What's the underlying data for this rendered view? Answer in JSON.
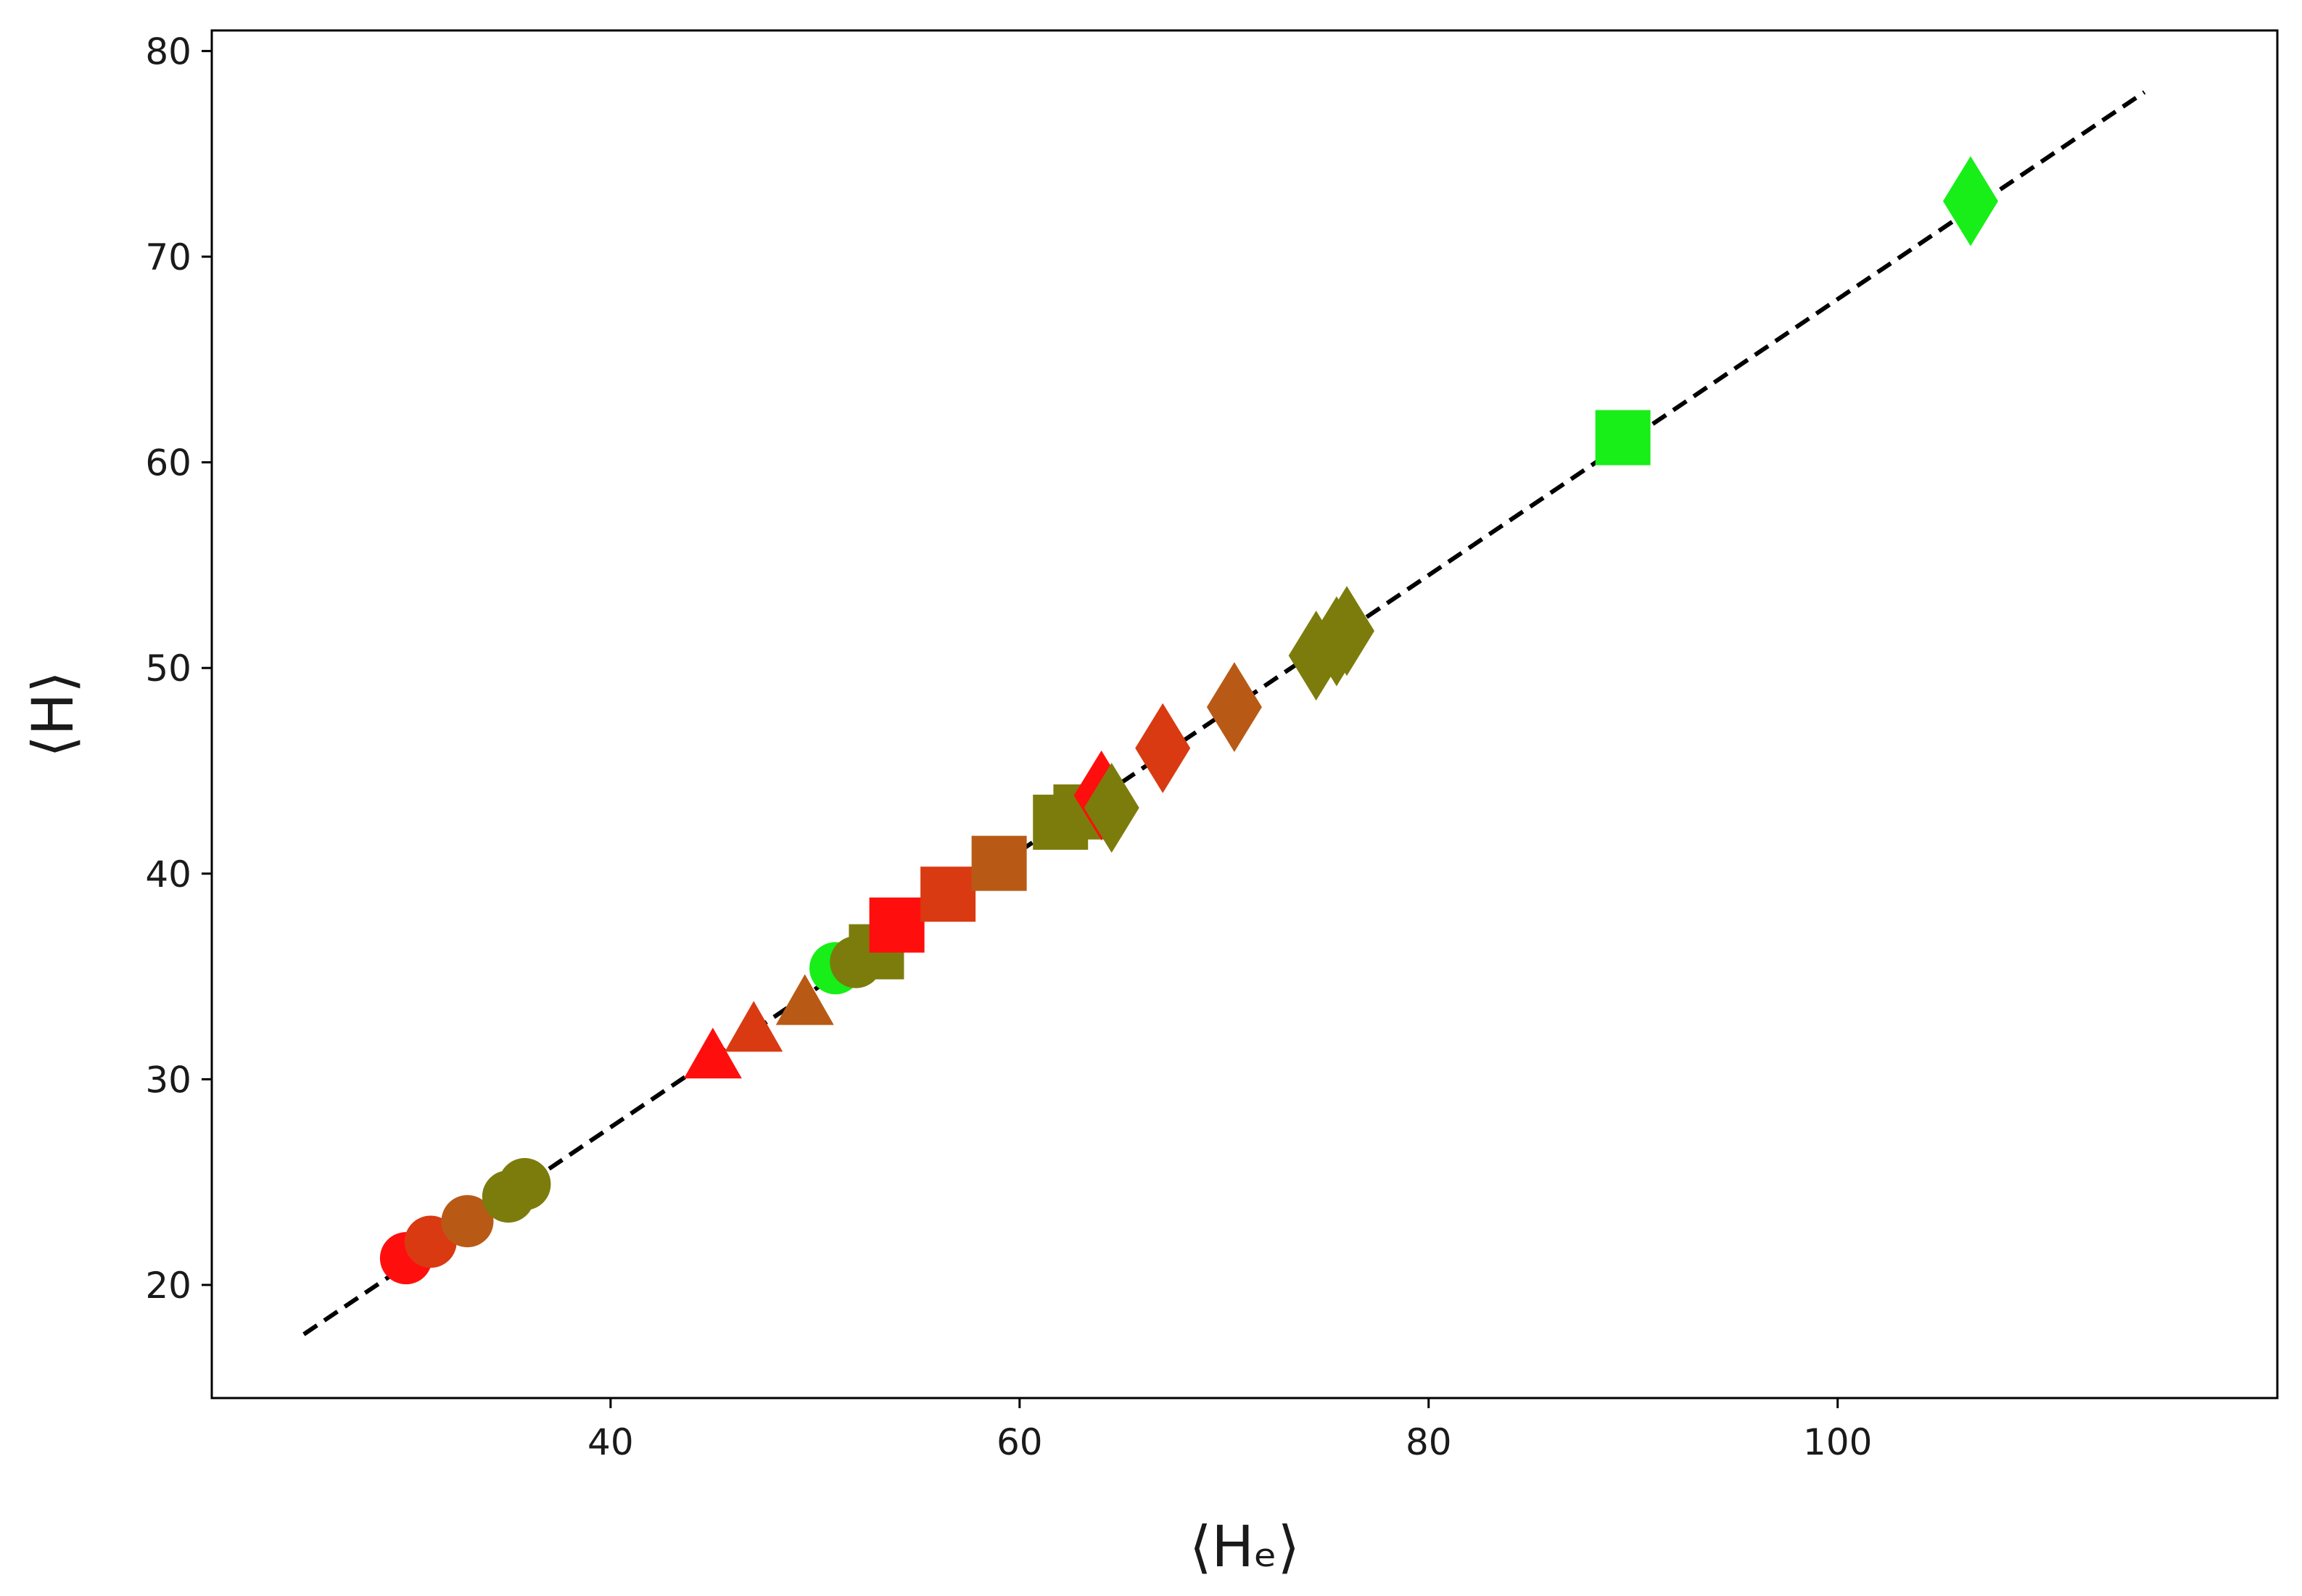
{
  "chart_data": {
    "type": "scatter",
    "xlabel": "⟨Hₑ⟩",
    "ylabel": "⟨H⟩",
    "xlim": [
      20.5,
      121.5
    ],
    "ylim": [
      14.5,
      81
    ],
    "xticks": [
      40,
      60,
      80,
      100
    ],
    "yticks": [
      20,
      30,
      40,
      50,
      60,
      70,
      80
    ],
    "grid": false,
    "reference_line": {
      "style": "dashed",
      "color": "#000000",
      "x": [
        25,
        115
      ],
      "y": [
        17.6,
        78
      ]
    },
    "colors": {
      "red": "#ff0e0e",
      "orange_red": "#d93a12",
      "brown_orange": "#b85a16",
      "olive": "#7c7c0c",
      "green": "#18ee18"
    },
    "points": [
      {
        "x": 30.0,
        "y": 21.3,
        "marker": "circle",
        "color": "red"
      },
      {
        "x": 31.2,
        "y": 22.1,
        "marker": "circle",
        "color": "orange_red"
      },
      {
        "x": 33.0,
        "y": 23.1,
        "marker": "circle",
        "color": "brown_orange"
      },
      {
        "x": 35.0,
        "y": 24.3,
        "marker": "circle",
        "color": "olive"
      },
      {
        "x": 35.8,
        "y": 24.9,
        "marker": "circle",
        "color": "olive"
      },
      {
        "x": 45.0,
        "y": 31.1,
        "marker": "triangle",
        "color": "red"
      },
      {
        "x": 47.0,
        "y": 32.4,
        "marker": "triangle",
        "color": "orange_red"
      },
      {
        "x": 49.5,
        "y": 33.7,
        "marker": "triangle",
        "color": "brown_orange"
      },
      {
        "x": 51.0,
        "y": 35.4,
        "marker": "circle",
        "color": "green"
      },
      {
        "x": 52.0,
        "y": 35.7,
        "marker": "circle",
        "color": "olive"
      },
      {
        "x": 53.0,
        "y": 36.2,
        "marker": "square",
        "color": "olive"
      },
      {
        "x": 54.0,
        "y": 37.5,
        "marker": "square",
        "color": "red"
      },
      {
        "x": 56.5,
        "y": 39.0,
        "marker": "square",
        "color": "orange_red"
      },
      {
        "x": 59.0,
        "y": 40.5,
        "marker": "square",
        "color": "brown_orange"
      },
      {
        "x": 62.0,
        "y": 42.5,
        "marker": "square",
        "color": "olive"
      },
      {
        "x": 63.0,
        "y": 43.0,
        "marker": "square",
        "color": "olive"
      },
      {
        "x": 64.0,
        "y": 43.8,
        "marker": "diamond",
        "color": "red"
      },
      {
        "x": 64.5,
        "y": 43.2,
        "marker": "diamond",
        "color": "olive"
      },
      {
        "x": 67.0,
        "y": 46.1,
        "marker": "diamond",
        "color": "orange_red"
      },
      {
        "x": 70.5,
        "y": 48.1,
        "marker": "diamond",
        "color": "brown_orange"
      },
      {
        "x": 74.5,
        "y": 50.6,
        "marker": "diamond",
        "color": "olive"
      },
      {
        "x": 75.5,
        "y": 51.3,
        "marker": "diamond",
        "color": "olive"
      },
      {
        "x": 76.0,
        "y": 51.8,
        "marker": "diamond",
        "color": "olive"
      },
      {
        "x": 89.5,
        "y": 61.2,
        "marker": "square",
        "color": "green"
      },
      {
        "x": 106.5,
        "y": 72.7,
        "marker": "diamond",
        "color": "green"
      }
    ]
  }
}
